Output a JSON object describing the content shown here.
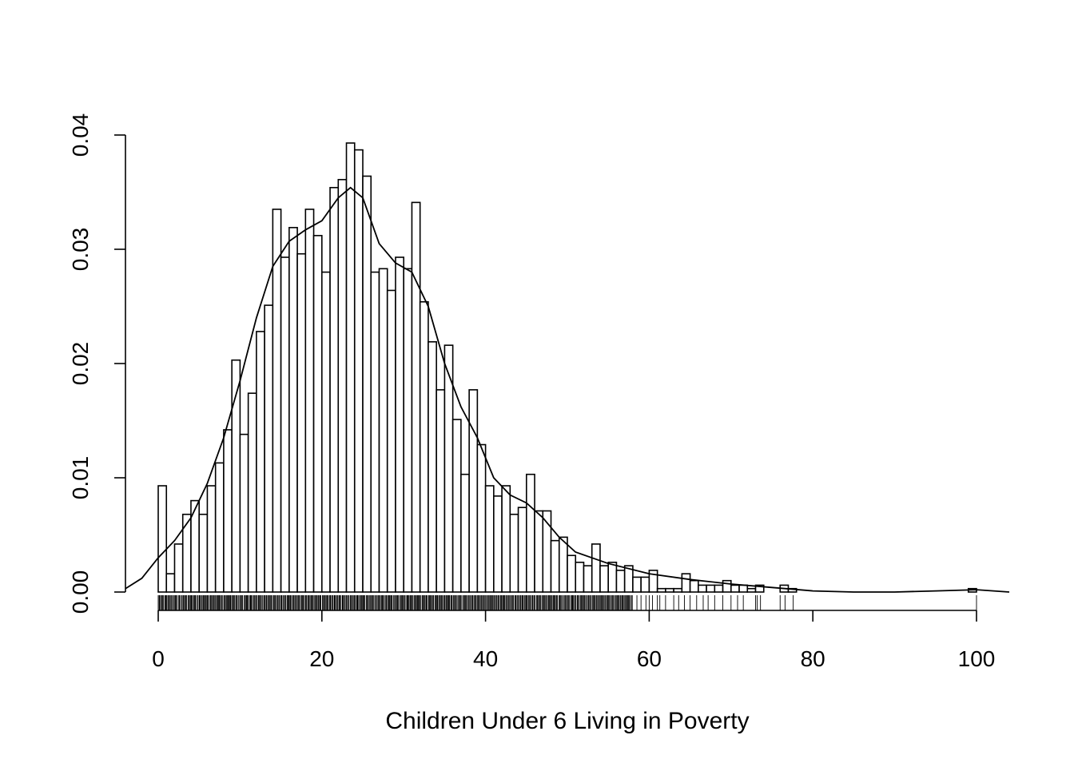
{
  "chart_data": {
    "type": "histogram",
    "title": "",
    "xlabel": "Children Under 6 Living in Poverty",
    "ylabel": "",
    "xlim": [
      0,
      100
    ],
    "ylim": [
      0,
      0.04
    ],
    "x_ticks": [
      "0",
      "20",
      "40",
      "60",
      "80",
      "100"
    ],
    "y_ticks": [
      "0.00",
      "0.01",
      "0.02",
      "0.03",
      "0.04"
    ],
    "bin_width": 1,
    "bin_starts": [
      0,
      1,
      2,
      3,
      4,
      5,
      6,
      7,
      8,
      9,
      10,
      11,
      12,
      13,
      14,
      15,
      16,
      17,
      18,
      19,
      20,
      21,
      22,
      23,
      24,
      25,
      26,
      27,
      28,
      29,
      30,
      31,
      32,
      33,
      34,
      35,
      36,
      37,
      38,
      39,
      40,
      41,
      42,
      43,
      44,
      45,
      46,
      47,
      48,
      49,
      50,
      51,
      52,
      53,
      54,
      55,
      56,
      57,
      58,
      59,
      60,
      61,
      62,
      63,
      64,
      65,
      66,
      67,
      68,
      69,
      70,
      71,
      72,
      73,
      74,
      75,
      76,
      77,
      78,
      79,
      80,
      81,
      82,
      83,
      84,
      85,
      86,
      87,
      88,
      89,
      90,
      91,
      92,
      93,
      94,
      95,
      96,
      97,
      98,
      99
    ],
    "density_values": [
      0.0093,
      0.0016,
      0.0042,
      0.0068,
      0.008,
      0.0068,
      0.0093,
      0.0113,
      0.0142,
      0.0203,
      0.0138,
      0.0174,
      0.0228,
      0.0251,
      0.0335,
      0.0293,
      0.0319,
      0.0296,
      0.0335,
      0.0312,
      0.028,
      0.0354,
      0.0361,
      0.0393,
      0.0387,
      0.0364,
      0.028,
      0.0283,
      0.0264,
      0.0293,
      0.0283,
      0.0341,
      0.0254,
      0.0219,
      0.0177,
      0.0216,
      0.0151,
      0.0103,
      0.0177,
      0.0129,
      0.0093,
      0.0084,
      0.0093,
      0.0068,
      0.0074,
      0.0103,
      0.0071,
      0.0071,
      0.0045,
      0.0048,
      0.0032,
      0.0026,
      0.0023,
      0.0042,
      0.0023,
      0.0026,
      0.0019,
      0.0023,
      0.0013,
      0.0013,
      0.0019,
      0.0003,
      0.0003,
      0.0003,
      0.0016,
      0.001,
      0.0006,
      0.0006,
      0.0006,
      0.001,
      0.0006,
      0.0006,
      0.0003,
      0.0006,
      0,
      0,
      0.0006,
      0.0003,
      0,
      0,
      0,
      0,
      0,
      0,
      0,
      0,
      0,
      0,
      0,
      0,
      0,
      0,
      0,
      0,
      0,
      0,
      0,
      0,
      0,
      0.0003
    ],
    "density_curve": {
      "x": [
        -4,
        -2,
        0,
        2,
        4,
        6,
        8,
        10,
        12,
        14,
        16,
        18,
        20,
        22,
        23.5,
        25,
        27,
        29,
        31,
        33,
        35,
        37,
        39,
        41,
        43,
        45,
        47,
        49,
        51,
        55,
        60,
        65,
        70,
        75,
        80,
        85,
        90,
        95,
        100,
        104
      ],
      "y": [
        0.0003,
        0.0012,
        0.003,
        0.0045,
        0.0065,
        0.0095,
        0.0135,
        0.0185,
        0.024,
        0.0285,
        0.0307,
        0.0317,
        0.0325,
        0.0345,
        0.0354,
        0.0345,
        0.0305,
        0.0288,
        0.028,
        0.025,
        0.02,
        0.0162,
        0.0135,
        0.01,
        0.0085,
        0.0078,
        0.0065,
        0.0048,
        0.0035,
        0.0025,
        0.0016,
        0.0011,
        0.0007,
        0.0004,
        0.0001,
        0,
        0,
        0.0001,
        0.0002,
        0
      ]
    },
    "rug": {
      "dense_range": [
        0,
        58
      ],
      "sparse_values": [
        58.5,
        59,
        59.6,
        60,
        60.4,
        61,
        61.3,
        62,
        63,
        63.6,
        64.3,
        65,
        65.8,
        66.6,
        67.2,
        68,
        69,
        70,
        70.8,
        71.5,
        73,
        73.2,
        73.6,
        76,
        76.6,
        77.6,
        100
      ]
    },
    "grid": false,
    "legend": "none"
  }
}
